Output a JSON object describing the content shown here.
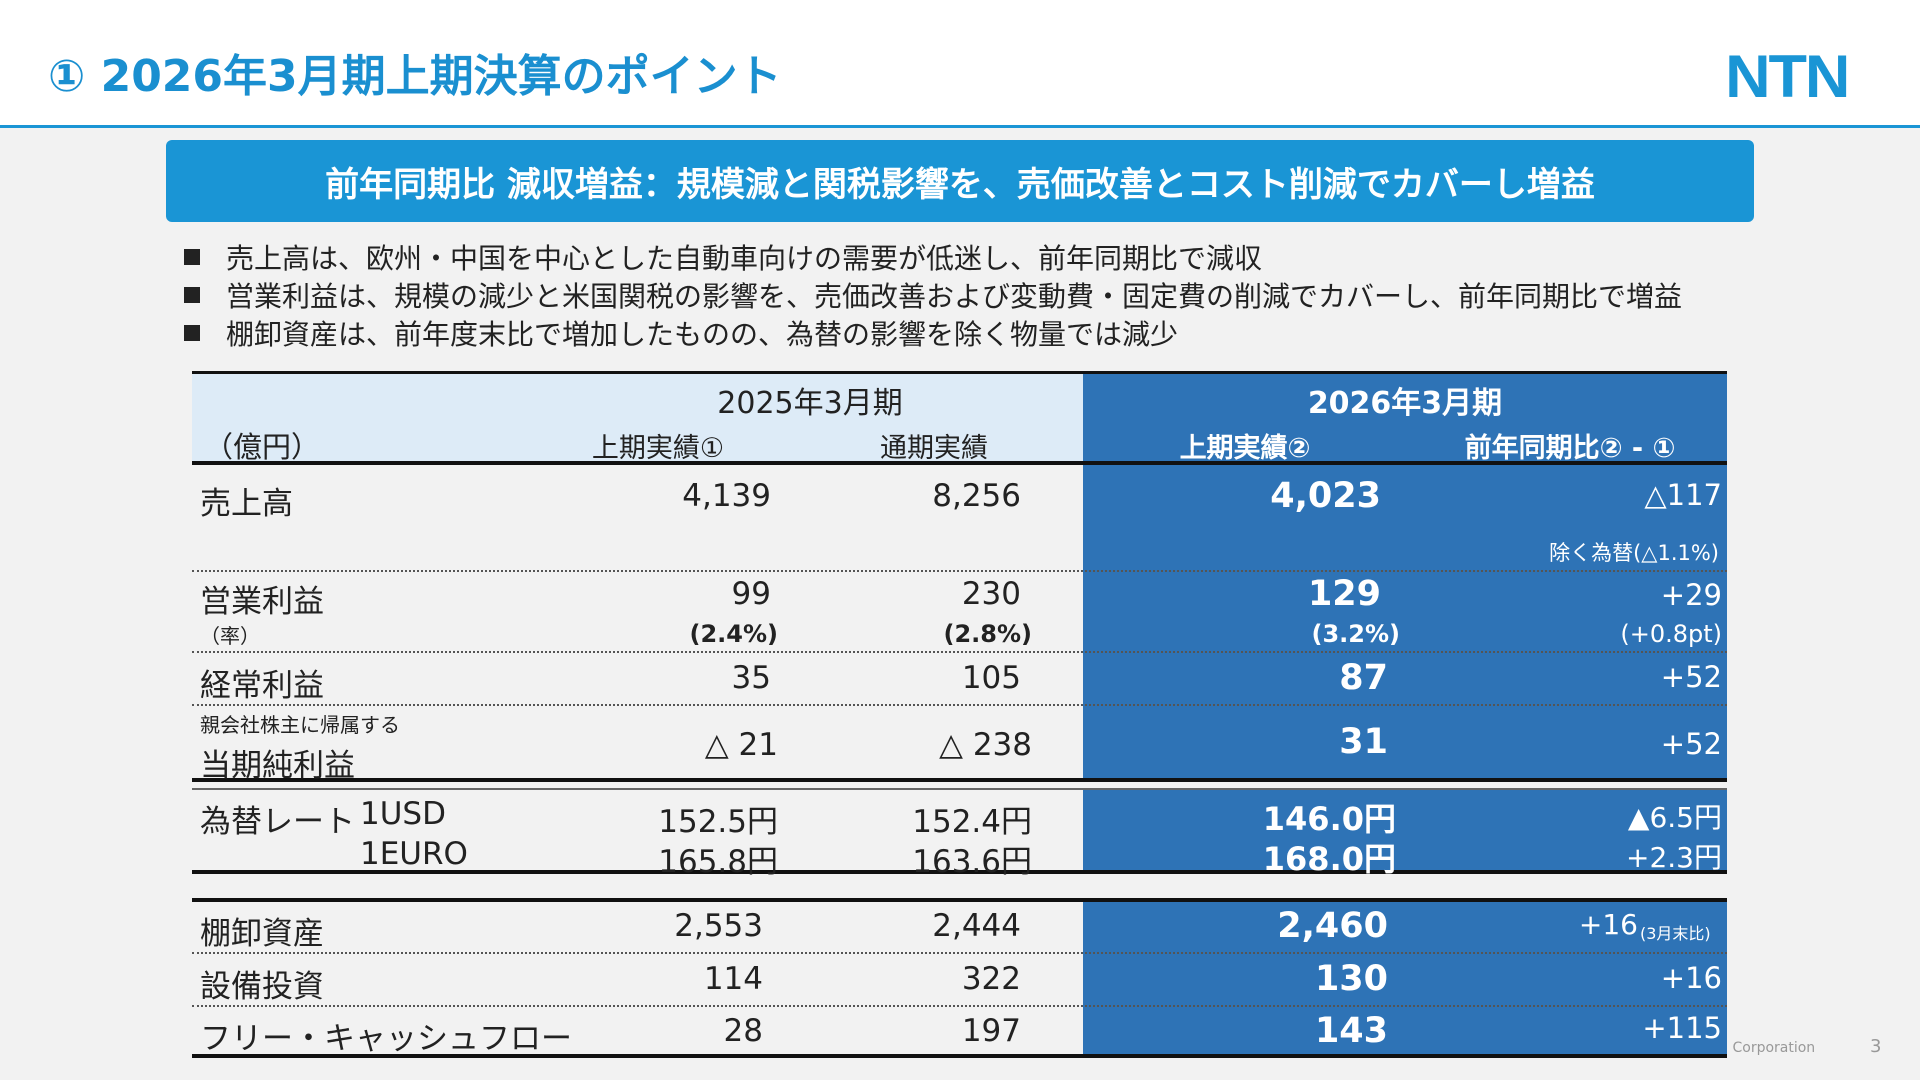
{
  "header": {
    "title": "① 2026年3月期上期決算のポイント",
    "logo": "NTN"
  },
  "banner": "前年同期比 減収増益：規模減と関税影響を、売価改善とコスト削減でカバーし増益",
  "bullets": [
    "売上高は、欧州・中国を中心とした自動車向けの需要が低迷し、前年同期比で減収",
    "営業利益は、規模の減少と米国関税の影響を、売価改善および変動費・固定費の削減でカバーし、前年同期比で増益",
    "棚卸資産は、前年度末比で増加したものの、為替の影響を除く物量では減少"
  ],
  "table": {
    "unit": "（億円）",
    "fy2025": "2025年3月期",
    "fy2026": "2026年3月期",
    "cols": [
      "上期実績①",
      "通期実績",
      "上期実績②",
      "前年同期比② - ①"
    ],
    "rows": {
      "sales": {
        "label": "売上高",
        "v": [
          "4,139",
          "8,256",
          "4,023",
          "△117"
        ],
        "note": "除く為替(△1.1%)"
      },
      "op": {
        "label": "営業利益",
        "v": [
          "99",
          "230",
          "129",
          "+29"
        ],
        "sub": "（率）",
        "rate": [
          "(2.4%)",
          "(2.8%)",
          "(3.2%)",
          "(+0.8pt)"
        ]
      },
      "ord": {
        "label": "経常利益",
        "v": [
          "35",
          "105",
          "87",
          "+52"
        ]
      },
      "net": {
        "pre": "親会社株主に帰属する",
        "label": "当期純利益",
        "v": [
          "△ 21",
          "△ 238",
          "31",
          "+52"
        ]
      },
      "usd": {
        "label": "為替レート",
        "cur": "1USD",
        "v": [
          "152.5円",
          "152.4円",
          "146.0円",
          "▲6.5円"
        ]
      },
      "eur": {
        "cur": "1EURO",
        "v": [
          "165.8円",
          "163.6円",
          "168.0円",
          "+2.3円"
        ]
      },
      "inv": {
        "label": "棚卸資産",
        "v": [
          "2,553",
          "2,444",
          "2,460",
          "+16"
        ],
        "note": "(3月末比)"
      },
      "capex": {
        "label": "設備投資",
        "v": [
          "114",
          "322",
          "130",
          "+16"
        ]
      },
      "fcf": {
        "label": "フリー・キャッシュフロー",
        "v": [
          "28",
          "197",
          "143",
          "+115"
        ]
      }
    }
  },
  "footer": {
    "copyright": "© 2025 NTN Corporation",
    "page": "3"
  },
  "colors": {
    "accent": "#1a95d5",
    "table_dark": "#2e73b6",
    "table_light": "#ddebf7"
  }
}
